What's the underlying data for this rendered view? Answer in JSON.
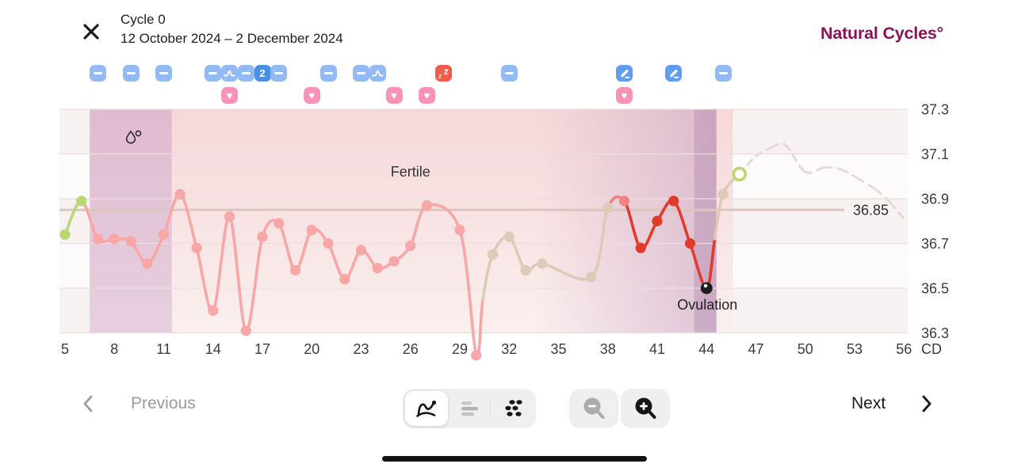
{
  "header": {
    "title": "Cycle 0",
    "date_range": "12 October 2024 – 2 December 2024",
    "logo": "Natural Cycles°",
    "close_icon": "close-icon"
  },
  "day_markers": [
    {
      "day": 7,
      "type": "minus"
    },
    {
      "day": 9,
      "type": "minus"
    },
    {
      "day": 11,
      "type": "minus"
    },
    {
      "day": 14,
      "type": "minus"
    },
    {
      "day": 15,
      "type": "pulse"
    },
    {
      "day": 16,
      "type": "minus"
    },
    {
      "day": 17,
      "type": "count",
      "label": "2"
    },
    {
      "day": 18,
      "type": "minus"
    },
    {
      "day": 21,
      "type": "minus"
    },
    {
      "day": 23,
      "type": "minus"
    },
    {
      "day": 24,
      "type": "pulse"
    },
    {
      "day": 28,
      "type": "sleep"
    },
    {
      "day": 32,
      "type": "minus"
    },
    {
      "day": 39,
      "type": "pen"
    },
    {
      "day": 42,
      "type": "pen"
    },
    {
      "day": 45,
      "type": "minus"
    }
  ],
  "heart_days": [
    15,
    20,
    25,
    27,
    39
  ],
  "chart_data": {
    "type": "line",
    "xlabel": "CD",
    "x_ticks": [
      5,
      8,
      11,
      14,
      17,
      20,
      23,
      26,
      29,
      32,
      35,
      38,
      41,
      44,
      47,
      50,
      53,
      56
    ],
    "y_ticks": [
      37.3,
      37.1,
      36.9,
      36.7,
      36.5,
      36.3
    ],
    "ylim": [
      36.3,
      37.3
    ],
    "xlim": [
      4.7,
      56.2
    ],
    "grid": true,
    "reference_line": {
      "value": 36.85,
      "label": "36.85"
    },
    "annotations": {
      "fertile_label": "Fertile",
      "fertile_label_day": 26,
      "ovulation_label": "Ovulation",
      "ovulation_day": 44
    },
    "regions": {
      "menstruation": {
        "start": 6.5,
        "end": 11.5
      },
      "fertile": {
        "start": 11.5,
        "end": 45.6
      },
      "luteal_shade": {
        "start": 33.6,
        "end": 44.6
      },
      "ovulation_column": {
        "start": 43.25,
        "end": 44.6
      }
    },
    "points": [
      {
        "day": 5,
        "temp": 36.74,
        "color": "green"
      },
      {
        "day": 6,
        "temp": 36.89,
        "color": "green"
      },
      {
        "day": 7,
        "temp": 36.72,
        "color": "pink"
      },
      {
        "day": 8,
        "temp": 36.72,
        "color": "pink"
      },
      {
        "day": 9,
        "temp": 36.71,
        "color": "pink"
      },
      {
        "day": 10,
        "temp": 36.61,
        "color": "pink"
      },
      {
        "day": 11,
        "temp": 36.74,
        "color": "pink"
      },
      {
        "day": 12,
        "temp": 36.92,
        "color": "pink"
      },
      {
        "day": 13,
        "temp": 36.68,
        "color": "pink"
      },
      {
        "day": 14,
        "temp": 36.4,
        "color": "pink"
      },
      {
        "day": 15,
        "temp": 36.82,
        "color": "pink"
      },
      {
        "day": 16,
        "temp": 36.31,
        "color": "pink"
      },
      {
        "day": 17,
        "temp": 36.73,
        "color": "pink"
      },
      {
        "day": 18,
        "temp": 36.79,
        "color": "pink"
      },
      {
        "day": 19,
        "temp": 36.58,
        "color": "pink"
      },
      {
        "day": 20,
        "temp": 36.76,
        "color": "pink"
      },
      {
        "day": 21,
        "temp": 36.7,
        "color": "pink"
      },
      {
        "day": 22,
        "temp": 36.54,
        "color": "pink"
      },
      {
        "day": 23,
        "temp": 36.67,
        "color": "pink"
      },
      {
        "day": 24,
        "temp": 36.59,
        "color": "pink"
      },
      {
        "day": 25,
        "temp": 36.62,
        "color": "pink"
      },
      {
        "day": 26,
        "temp": 36.69,
        "color": "pink"
      },
      {
        "day": 27,
        "temp": 36.87,
        "color": "pink"
      },
      {
        "day": 29,
        "temp": 36.76,
        "color": "pink"
      },
      {
        "day": 30,
        "temp": 36.2,
        "color": "pink"
      },
      {
        "day": 30.4,
        "temp": 36.45,
        "color": "pink",
        "hidden": true
      },
      {
        "day": 31,
        "temp": 36.65,
        "color": "tan"
      },
      {
        "day": 32,
        "temp": 36.73,
        "color": "tan"
      },
      {
        "day": 33,
        "temp": 36.58,
        "color": "tan"
      },
      {
        "day": 34,
        "temp": 36.61,
        "color": "tan"
      },
      {
        "day": 37,
        "temp": 36.55,
        "color": "tan"
      },
      {
        "day": 38,
        "temp": 36.86,
        "color": "tan"
      },
      {
        "day": 39,
        "temp": 36.89,
        "color": "lightred"
      },
      {
        "day": 40,
        "temp": 36.68,
        "color": "red"
      },
      {
        "day": 41,
        "temp": 36.8,
        "color": "red"
      },
      {
        "day": 42,
        "temp": 36.89,
        "color": "red"
      },
      {
        "day": 43,
        "temp": 36.7,
        "color": "red"
      },
      {
        "day": 44,
        "temp": 36.5,
        "color": "black"
      },
      {
        "day": 44.5,
        "temp": 36.72,
        "color": "red",
        "hidden": true
      },
      {
        "day": 45,
        "temp": 36.92,
        "color": "tan"
      },
      {
        "day": 46,
        "temp": 37.01,
        "color": "greenring"
      }
    ],
    "prediction": [
      [
        46,
        37.01
      ],
      [
        47,
        37.09
      ],
      [
        48,
        37.13
      ],
      [
        48.8,
        37.14
      ],
      [
        50,
        37.02
      ],
      [
        51.2,
        37.04
      ],
      [
        52.2,
        37.03
      ],
      [
        53.2,
        36.99
      ],
      [
        54.3,
        36.94
      ],
      [
        55.2,
        36.88
      ],
      [
        56.1,
        36.8
      ]
    ],
    "colors": {
      "green": "#B9D873",
      "pink": "#F8A6A6",
      "tan": "#DECBB7",
      "red": "#E23B2C",
      "lightred": "#F58282",
      "black": "#1D1D1D",
      "dashed": "#E7D9D9",
      "reference": "#DAC6C1",
      "gridline": "#ECDEDE",
      "stripe_pink": "#F8F1F1",
      "stripe_white": "#FCFAFA",
      "fertile_top": "#F6D8D8",
      "fertile_bottom": "#FAEFEF",
      "menstruation_top": "#E0BBD1",
      "menstruation_bottom": "#E6D0DE",
      "luteal": "#C7A1C2",
      "ovulation_column": "#B68CB2"
    }
  },
  "footer": {
    "previous_label": "Previous",
    "next_label": "Next",
    "view_toggle": [
      {
        "id": "line",
        "icon": "line-chart-icon",
        "active": true
      },
      {
        "id": "bars",
        "icon": "bar-chart-icon",
        "active": false
      },
      {
        "id": "dots",
        "icon": "scatter-chart-icon",
        "active": false
      }
    ],
    "zoom_controls": [
      {
        "id": "zoom-out",
        "icon": "zoom-out-icon"
      },
      {
        "id": "zoom-in",
        "icon": "zoom-in-icon"
      }
    ]
  }
}
